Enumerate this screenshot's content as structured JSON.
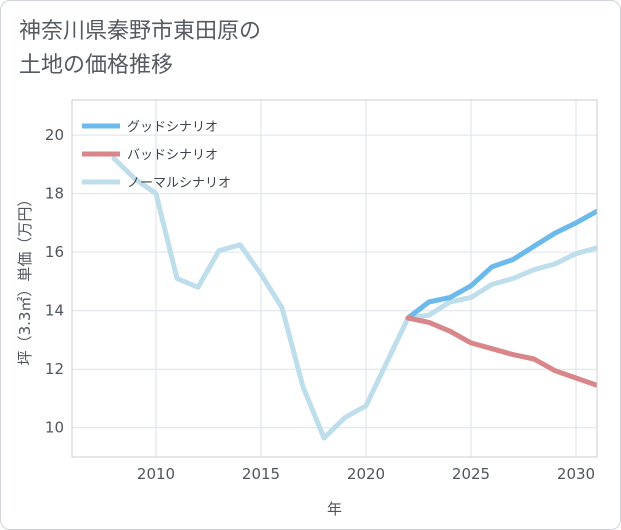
{
  "title_lines": [
    "神奈川県秦野市東田原の",
    "土地の価格推移"
  ],
  "chart_data": {
    "type": "line",
    "title": "神奈川県秦野市東田原の土地の価格推移",
    "xlabel": "年",
    "ylabel": "坪（3.3㎡）単価（万円）",
    "xlim": [
      2006,
      2031
    ],
    "ylim": [
      9,
      21.2
    ],
    "xticks": [
      2010,
      2015,
      2020,
      2025,
      2030
    ],
    "yticks": [
      10,
      12,
      14,
      16,
      18,
      20
    ],
    "grid": true,
    "legend_position": "top-left",
    "series": [
      {
        "name": "グッドシナリオ",
        "color": "#6cb9ec",
        "x": [
          2022,
          2023,
          2024,
          2025,
          2026,
          2027,
          2028,
          2029,
          2030,
          2031
        ],
        "y": [
          13.75,
          14.3,
          14.45,
          14.85,
          15.5,
          15.75,
          16.2,
          16.65,
          17.0,
          17.4
        ]
      },
      {
        "name": "バッドシナリオ",
        "color": "#d9868b",
        "x": [
          2022,
          2023,
          2024,
          2025,
          2026,
          2027,
          2028,
          2029,
          2030,
          2031
        ],
        "y": [
          13.75,
          13.6,
          13.3,
          12.9,
          12.7,
          12.5,
          12.35,
          11.95,
          11.7,
          11.45
        ]
      },
      {
        "name": "ノーマルシナリオ",
        "color": "#bfdeeb",
        "x": [
          2008,
          2009,
          2010,
          2011,
          2012,
          2013,
          2014,
          2015,
          2016,
          2017,
          2018,
          2019,
          2020,
          2021,
          2022,
          2023,
          2024,
          2025,
          2026,
          2027,
          2028,
          2029,
          2030,
          2031
        ],
        "y": [
          19.2,
          18.5,
          18.0,
          15.1,
          14.8,
          16.05,
          16.25,
          15.25,
          14.1,
          11.4,
          9.65,
          10.35,
          10.75,
          12.25,
          13.75,
          13.85,
          14.3,
          14.45,
          14.9,
          15.1,
          15.4,
          15.6,
          15.95,
          16.15
        ]
      }
    ]
  }
}
